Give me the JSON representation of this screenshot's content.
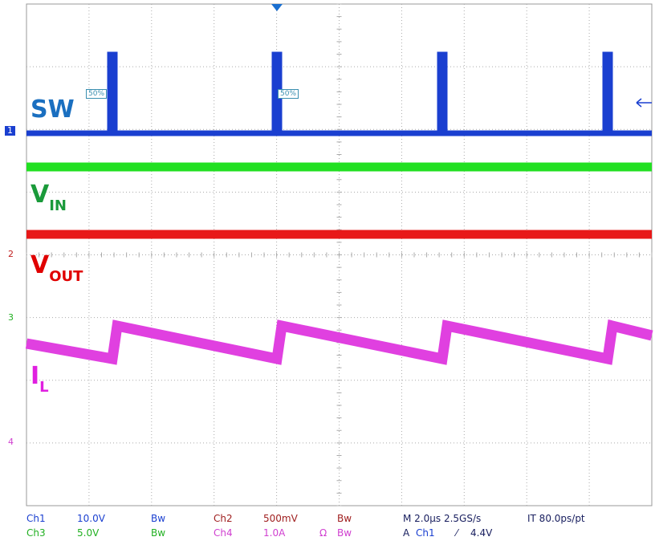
{
  "traces": {
    "sw": {
      "label": "SW"
    },
    "vin": {
      "label": "V",
      "sub": "IN"
    },
    "vout": {
      "label": "V",
      "sub": "OUT"
    },
    "il": {
      "label": "I",
      "sub": "L"
    }
  },
  "markers": {
    "ch1": "1",
    "ch2": "2",
    "ch3": "3",
    "ch4": "4",
    "level_a": "50%",
    "level_b": "50%"
  },
  "status": {
    "row1": [
      "Ch1",
      "10.0V",
      "Bw",
      "Ch2",
      "500mV",
      "Bw",
      "M 2.0µs 2.5GS/s",
      "IT 80.0ps/pt"
    ],
    "row2": [
      "Ch3",
      "5.0V",
      "Bw",
      "Ch4",
      "1.0A",
      "Ω",
      "Bw",
      "A",
      "Ch1",
      "⁄",
      "4.4V"
    ]
  }
}
